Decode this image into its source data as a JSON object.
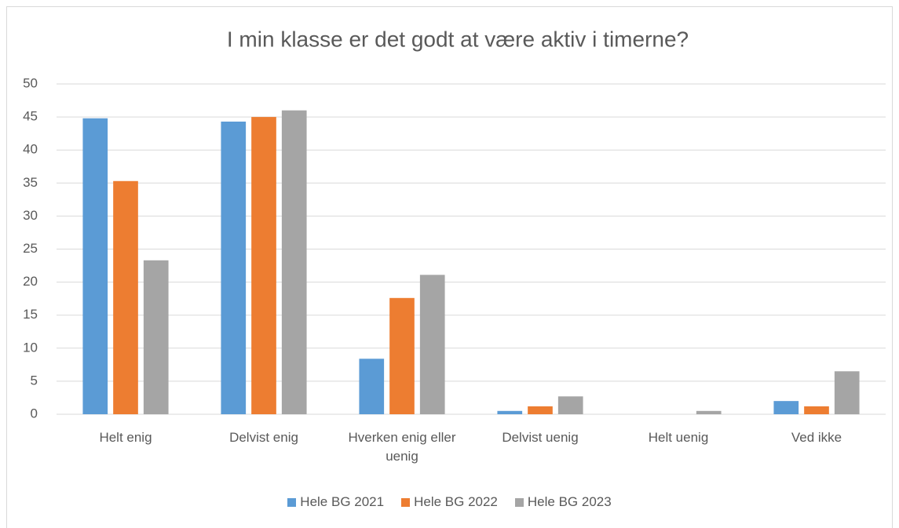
{
  "chart_data": {
    "type": "bar",
    "title": "I min klasse er det godt at være aktiv i timerne?",
    "categories": [
      "Helt enig",
      "Delvist enig",
      "Hverken enig eller uenig",
      "Delvist uenig",
      "Helt uenig",
      "Ved ikke"
    ],
    "series": [
      {
        "name": "Hele BG 2021",
        "color": "#5b9bd5",
        "values": [
          44.8,
          44.3,
          8.4,
          0.5,
          0,
          2.0
        ]
      },
      {
        "name": "Hele BG 2022",
        "color": "#ed7d31",
        "values": [
          35.3,
          45.0,
          17.6,
          1.2,
          0,
          1.2
        ]
      },
      {
        "name": "Hele BG 2023",
        "color": "#a5a5a5",
        "values": [
          23.3,
          46.0,
          21.1,
          2.7,
          0.5,
          6.5
        ]
      }
    ],
    "ylim": [
      0,
      50
    ],
    "yticks": [
      0,
      5,
      10,
      15,
      20,
      25,
      30,
      35,
      40,
      45,
      50
    ],
    "grid": true,
    "legend": "bottom"
  }
}
